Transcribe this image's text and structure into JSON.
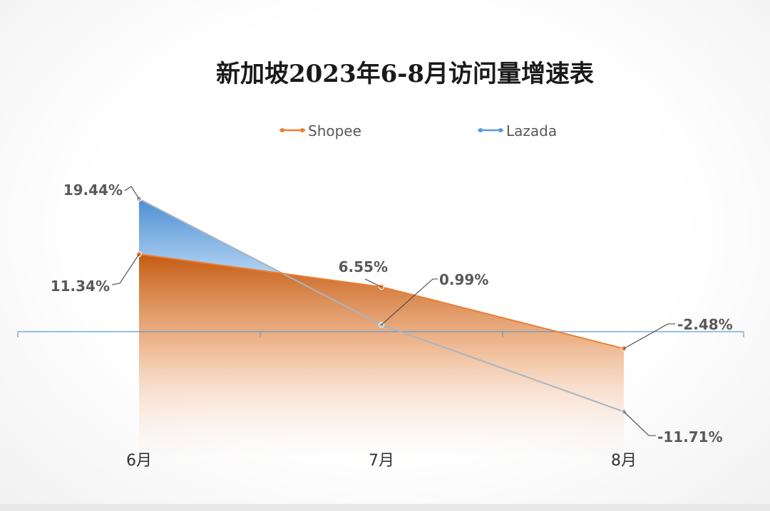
{
  "chart_data": {
    "type": "area",
    "title": "新加坡2023年6-8月访问量增速表",
    "categories": [
      "6月",
      "7月",
      "8月"
    ],
    "series": [
      {
        "name": "Shopee",
        "values": [
          11.34,
          6.55,
          -2.48
        ],
        "labels": [
          "11.34%",
          "6.55%",
          "-2.48%"
        ],
        "color": "#ed7d31"
      },
      {
        "name": "Lazada",
        "values": [
          19.44,
          0.99,
          -11.71
        ],
        "labels": [
          "19.44%",
          "0.99%",
          "-11.71%"
        ],
        "color": "#5b9bd5"
      }
    ],
    "xlabel": "",
    "ylabel": "",
    "legend": "top",
    "grid": false
  }
}
